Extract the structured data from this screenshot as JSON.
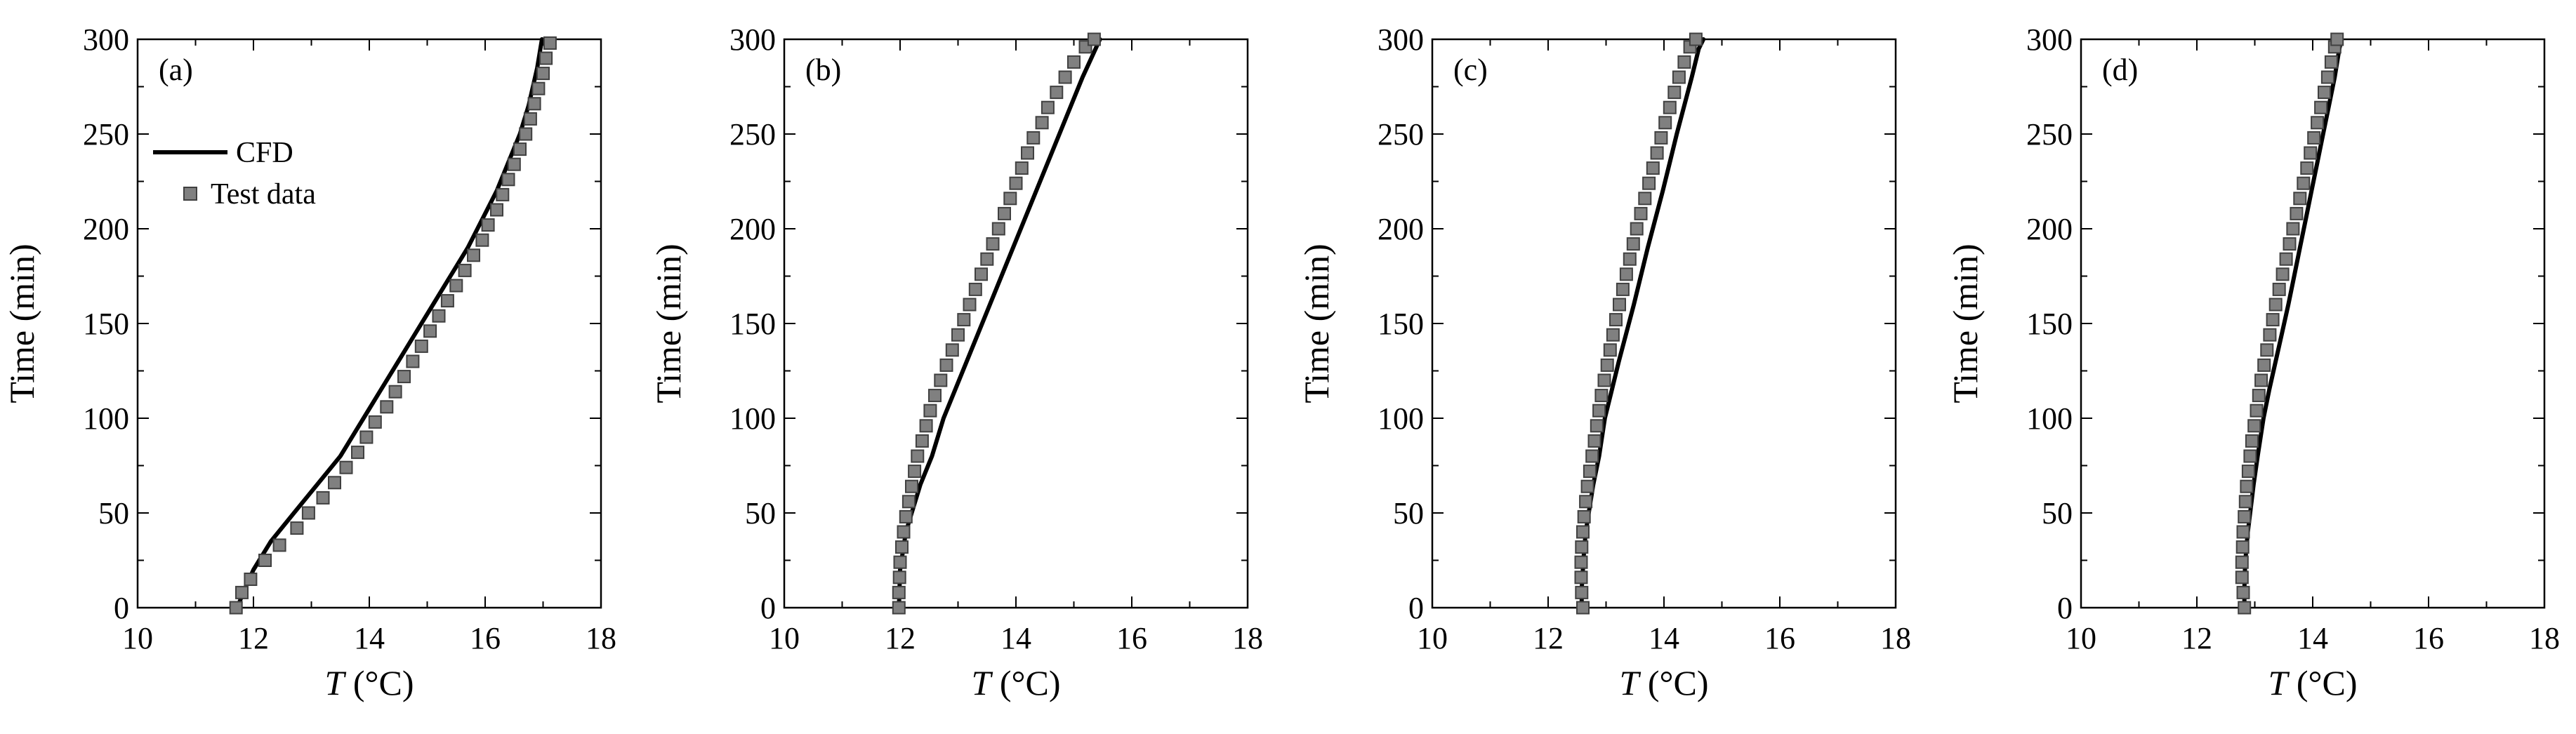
{
  "figure": {
    "panel_count": 4
  },
  "chart_data": [
    {
      "type": "line",
      "panel_label": "(a)",
      "xlabel_var": "T",
      "xlabel_unit": " (°C)",
      "ylabel": "Time (min)",
      "xlim": [
        10,
        18
      ],
      "ylim": [
        0,
        300
      ],
      "xticks": [
        10,
        12,
        14,
        16,
        18
      ],
      "yticks": [
        0,
        50,
        100,
        150,
        200,
        250,
        300
      ],
      "legend": {
        "placement": "upper-left",
        "entries": [
          "CFD",
          "Test data"
        ]
      },
      "series": [
        {
          "name": "CFD",
          "style": "line",
          "color": "#000000",
          "points": [
            [
              11.72,
              0
            ],
            [
              11.85,
              10
            ],
            [
              12.0,
              20
            ],
            [
              12.3,
              35
            ],
            [
              12.7,
              50
            ],
            [
              13.1,
              65
            ],
            [
              13.5,
              80
            ],
            [
              13.9,
              100
            ],
            [
              14.2,
              115
            ],
            [
              14.5,
              130
            ],
            [
              14.8,
              145
            ],
            [
              15.1,
              160
            ],
            [
              15.4,
              175
            ],
            [
              15.7,
              190
            ],
            [
              15.95,
              205
            ],
            [
              16.2,
              220
            ],
            [
              16.4,
              235
            ],
            [
              16.6,
              250
            ],
            [
              16.75,
              265
            ],
            [
              16.9,
              285
            ],
            [
              16.98,
              300
            ]
          ]
        },
        {
          "name": "Test data",
          "style": "marker-square",
          "color": "#808080",
          "points": [
            [
              11.7,
              0
            ],
            [
              11.8,
              8
            ],
            [
              11.95,
              15
            ],
            [
              12.2,
              25
            ],
            [
              12.45,
              33
            ],
            [
              12.75,
              42
            ],
            [
              12.95,
              50
            ],
            [
              13.2,
              58
            ],
            [
              13.4,
              66
            ],
            [
              13.6,
              74
            ],
            [
              13.8,
              82
            ],
            [
              13.95,
              90
            ],
            [
              14.1,
              98
            ],
            [
              14.3,
              106
            ],
            [
              14.45,
              114
            ],
            [
              14.6,
              122
            ],
            [
              14.75,
              130
            ],
            [
              14.9,
              138
            ],
            [
              15.05,
              146
            ],
            [
              15.2,
              154
            ],
            [
              15.35,
              162
            ],
            [
              15.5,
              170
            ],
            [
              15.65,
              178
            ],
            [
              15.8,
              186
            ],
            [
              15.95,
              194
            ],
            [
              16.05,
              202
            ],
            [
              16.2,
              210
            ],
            [
              16.3,
              218
            ],
            [
              16.4,
              226
            ],
            [
              16.5,
              234
            ],
            [
              16.6,
              242
            ],
            [
              16.7,
              250
            ],
            [
              16.78,
              258
            ],
            [
              16.85,
              266
            ],
            [
              16.92,
              274
            ],
            [
              17.0,
              282
            ],
            [
              17.05,
              290
            ],
            [
              17.12,
              298
            ]
          ]
        }
      ]
    },
    {
      "type": "line",
      "panel_label": "(b)",
      "xlabel_var": "T",
      "xlabel_unit": " (°C)",
      "ylabel": "Time (min)",
      "xlim": [
        10,
        18
      ],
      "ylim": [
        0,
        300
      ],
      "xticks": [
        10,
        12,
        14,
        16,
        18
      ],
      "yticks": [
        0,
        50,
        100,
        150,
        200,
        250,
        300
      ],
      "series": [
        {
          "name": "CFD",
          "style": "line",
          "color": "#000000",
          "points": [
            [
              11.98,
              0
            ],
            [
              11.99,
              10
            ],
            [
              12.0,
              20
            ],
            [
              12.05,
              30
            ],
            [
              12.1,
              40
            ],
            [
              12.2,
              50
            ],
            [
              12.35,
              65
            ],
            [
              12.55,
              80
            ],
            [
              12.75,
              100
            ],
            [
              12.95,
              115
            ],
            [
              13.15,
              130
            ],
            [
              13.35,
              145
            ],
            [
              13.55,
              160
            ],
            [
              13.75,
              175
            ],
            [
              13.95,
              190
            ],
            [
              14.15,
              205
            ],
            [
              14.35,
              220
            ],
            [
              14.55,
              235
            ],
            [
              14.75,
              250
            ],
            [
              14.95,
              265
            ],
            [
              15.15,
              280
            ],
            [
              15.3,
              290
            ],
            [
              15.45,
              300
            ]
          ]
        },
        {
          "name": "Test data",
          "style": "marker-square",
          "color": "#808080",
          "points": [
            [
              11.98,
              0
            ],
            [
              11.98,
              8
            ],
            [
              11.99,
              16
            ],
            [
              12.0,
              24
            ],
            [
              12.03,
              32
            ],
            [
              12.06,
              40
            ],
            [
              12.1,
              48
            ],
            [
              12.15,
              56
            ],
            [
              12.2,
              64
            ],
            [
              12.25,
              72
            ],
            [
              12.3,
              80
            ],
            [
              12.38,
              88
            ],
            [
              12.45,
              96
            ],
            [
              12.52,
              104
            ],
            [
              12.6,
              112
            ],
            [
              12.7,
              120
            ],
            [
              12.8,
              128
            ],
            [
              12.9,
              136
            ],
            [
              13.0,
              144
            ],
            [
              13.1,
              152
            ],
            [
              13.2,
              160
            ],
            [
              13.3,
              168
            ],
            [
              13.4,
              176
            ],
            [
              13.5,
              184
            ],
            [
              13.6,
              192
            ],
            [
              13.7,
              200
            ],
            [
              13.8,
              208
            ],
            [
              13.9,
              216
            ],
            [
              14.0,
              224
            ],
            [
              14.1,
              232
            ],
            [
              14.2,
              240
            ],
            [
              14.3,
              248
            ],
            [
              14.45,
              256
            ],
            [
              14.55,
              264
            ],
            [
              14.7,
              272
            ],
            [
              14.85,
              280
            ],
            [
              15.0,
              288
            ],
            [
              15.2,
              296
            ],
            [
              15.35,
              300
            ]
          ]
        }
      ]
    },
    {
      "type": "line",
      "panel_label": "(c)",
      "xlabel_var": "T",
      "xlabel_unit": " (°C)",
      "ylabel": "Time (min)",
      "xlim": [
        10,
        18
      ],
      "ylim": [
        0,
        300
      ],
      "xticks": [
        10,
        12,
        14,
        16,
        18
      ],
      "yticks": [
        0,
        50,
        100,
        150,
        200,
        250,
        300
      ],
      "series": [
        {
          "name": "CFD",
          "style": "line",
          "color": "#000000",
          "points": [
            [
              12.58,
              0
            ],
            [
              12.58,
              10
            ],
            [
              12.6,
              20
            ],
            [
              12.62,
              30
            ],
            [
              12.65,
              40
            ],
            [
              12.7,
              50
            ],
            [
              12.78,
              65
            ],
            [
              12.88,
              80
            ],
            [
              12.98,
              100
            ],
            [
              13.1,
              115
            ],
            [
              13.22,
              130
            ],
            [
              13.35,
              145
            ],
            [
              13.48,
              160
            ],
            [
              13.6,
              175
            ],
            [
              13.72,
              190
            ],
            [
              13.85,
              205
            ],
            [
              13.98,
              220
            ],
            [
              14.1,
              235
            ],
            [
              14.22,
              250
            ],
            [
              14.35,
              265
            ],
            [
              14.48,
              280
            ],
            [
              14.6,
              295
            ],
            [
              14.68,
              300
            ]
          ]
        },
        {
          "name": "Test data",
          "style": "marker-square",
          "color": "#808080",
          "points": [
            [
              12.6,
              0
            ],
            [
              12.58,
              8
            ],
            [
              12.57,
              16
            ],
            [
              12.57,
              24
            ],
            [
              12.58,
              32
            ],
            [
              12.6,
              40
            ],
            [
              12.62,
              48
            ],
            [
              12.65,
              56
            ],
            [
              12.68,
              64
            ],
            [
              12.72,
              72
            ],
            [
              12.76,
              80
            ],
            [
              12.8,
              88
            ],
            [
              12.84,
              96
            ],
            [
              12.88,
              104
            ],
            [
              12.92,
              112
            ],
            [
              12.97,
              120
            ],
            [
              13.02,
              128
            ],
            [
              13.07,
              136
            ],
            [
              13.12,
              144
            ],
            [
              13.17,
              152
            ],
            [
              13.23,
              160
            ],
            [
              13.29,
              168
            ],
            [
              13.35,
              176
            ],
            [
              13.41,
              184
            ],
            [
              13.47,
              192
            ],
            [
              13.53,
              200
            ],
            [
              13.6,
              208
            ],
            [
              13.67,
              216
            ],
            [
              13.74,
              224
            ],
            [
              13.81,
              232
            ],
            [
              13.88,
              240
            ],
            [
              13.95,
              248
            ],
            [
              14.02,
              256
            ],
            [
              14.1,
              264
            ],
            [
              14.18,
              272
            ],
            [
              14.26,
              280
            ],
            [
              14.35,
              288
            ],
            [
              14.45,
              296
            ],
            [
              14.55,
              300
            ]
          ]
        }
      ]
    },
    {
      "type": "line",
      "panel_label": "(d)",
      "xlabel_var": "T",
      "xlabel_unit": " (°C)",
      "ylabel": "Time (min)",
      "xlim": [
        10,
        18
      ],
      "ylim": [
        0,
        300
      ],
      "xticks": [
        10,
        12,
        14,
        16,
        18
      ],
      "yticks": [
        0,
        50,
        100,
        150,
        200,
        250,
        300
      ],
      "series": [
        {
          "name": "CFD",
          "style": "line",
          "color": "#000000",
          "points": [
            [
              12.82,
              0
            ],
            [
              12.82,
              10
            ],
            [
              12.83,
              20
            ],
            [
              12.85,
              30
            ],
            [
              12.88,
              40
            ],
            [
              12.92,
              50
            ],
            [
              12.98,
              65
            ],
            [
              13.05,
              80
            ],
            [
              13.15,
              100
            ],
            [
              13.25,
              115
            ],
            [
              13.36,
              130
            ],
            [
              13.47,
              145
            ],
            [
              13.58,
              160
            ],
            [
              13.68,
              175
            ],
            [
              13.78,
              190
            ],
            [
              13.88,
              205
            ],
            [
              13.98,
              220
            ],
            [
              14.08,
              235
            ],
            [
              14.18,
              250
            ],
            [
              14.28,
              265
            ],
            [
              14.38,
              280
            ],
            [
              14.46,
              295
            ],
            [
              14.5,
              300
            ]
          ]
        },
        {
          "name": "Test data",
          "style": "marker-square",
          "color": "#808080",
          "points": [
            [
              12.82,
              0
            ],
            [
              12.8,
              8
            ],
            [
              12.78,
              16
            ],
            [
              12.78,
              24
            ],
            [
              12.79,
              32
            ],
            [
              12.8,
              40
            ],
            [
              12.82,
              48
            ],
            [
              12.84,
              56
            ],
            [
              12.86,
              64
            ],
            [
              12.89,
              72
            ],
            [
              12.92,
              80
            ],
            [
              12.95,
              88
            ],
            [
              12.99,
              96
            ],
            [
              13.03,
              104
            ],
            [
              13.07,
              112
            ],
            [
              13.11,
              120
            ],
            [
              13.16,
              128
            ],
            [
              13.21,
              136
            ],
            [
              13.26,
              144
            ],
            [
              13.31,
              152
            ],
            [
              13.36,
              160
            ],
            [
              13.42,
              168
            ],
            [
              13.48,
              176
            ],
            [
              13.54,
              184
            ],
            [
              13.6,
              192
            ],
            [
              13.66,
              200
            ],
            [
              13.72,
              208
            ],
            [
              13.78,
              216
            ],
            [
              13.84,
              224
            ],
            [
              13.9,
              232
            ],
            [
              13.96,
              240
            ],
            [
              14.02,
              248
            ],
            [
              14.08,
              256
            ],
            [
              14.14,
              264
            ],
            [
              14.2,
              272
            ],
            [
              14.26,
              280
            ],
            [
              14.32,
              288
            ],
            [
              14.38,
              296
            ],
            [
              14.42,
              300
            ]
          ]
        }
      ]
    }
  ]
}
